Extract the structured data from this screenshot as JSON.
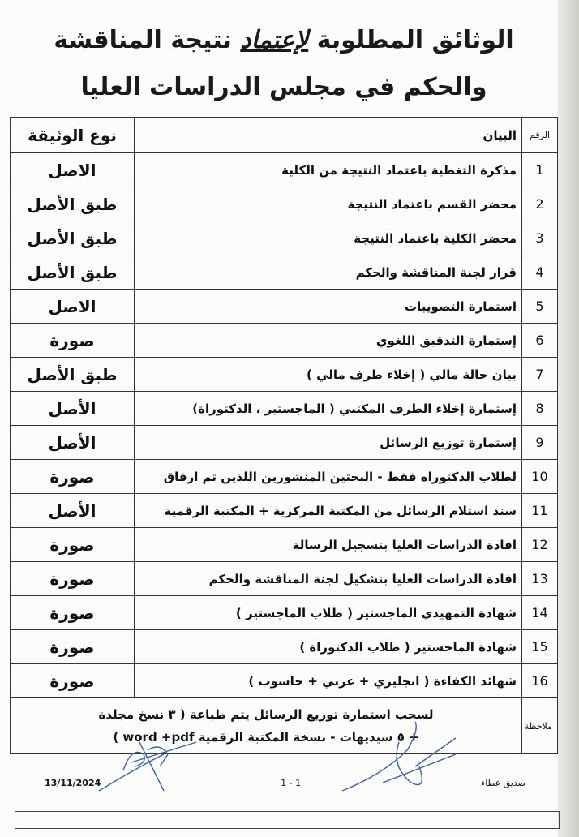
{
  "title": {
    "line1_before": "الوثائق المطلوبة ",
    "line1_underlined": "لإعتماد",
    "line1_after": " نتيجة المناقشة",
    "line2": "والحكم في مجلس الدراسات العليا"
  },
  "table": {
    "headers": {
      "number": "الرقم",
      "statement": "البيان",
      "type": "نوع الوثيقة"
    },
    "rows": [
      {
        "n": "1",
        "statement": "مذكرة التغطية باعتماد النتيجة من الكلية",
        "type": "الاصل"
      },
      {
        "n": "2",
        "statement": "محضر القسم باعتماد النتيجة",
        "type": "طبق الأصل"
      },
      {
        "n": "3",
        "statement": "محضر الكلية باعتماد النتيجة",
        "type": "طبق الأصل"
      },
      {
        "n": "4",
        "statement": "قرار لجنة المناقشة والحكم",
        "type": "طبق الأصل"
      },
      {
        "n": "5",
        "statement": "استمارة التصويبات",
        "type": "الاصل"
      },
      {
        "n": "6",
        "statement": "إستمارة التدقيق اللغوي",
        "type": "صورة"
      },
      {
        "n": "7",
        "statement": "بيان حالة مالي ( إخلاء طرف مالي )",
        "type": "طبق الأصل"
      },
      {
        "n": "8",
        "statement": "إستمارة إخلاء الطرف المكتبي ( الماجستير ، الدكتوراة)",
        "type": "الأصل"
      },
      {
        "n": "9",
        "statement": "إستمارة توزيع الرسائل",
        "type": "الأصل"
      },
      {
        "n": "10",
        "statement": "لطلاب الدكتوراه فقط - البحثين المنشورين اللذين تم ارفاق",
        "type": "صورة"
      },
      {
        "n": "11",
        "statement": "سند استلام الرسائل من المكتبة المركزية + المكتبة الرقمية",
        "type": "الأصل"
      },
      {
        "n": "12",
        "statement": "افادة الدراسات العليا بتسجيل الرسالة",
        "type": "صورة"
      },
      {
        "n": "13",
        "statement": "افادة الدراسات العليا بتشكيل لجنة المناقشة والحكم",
        "type": "صورة"
      },
      {
        "n": "14",
        "statement": "شهادة التمهيدي الماجستير ( طلاب الماجستير )",
        "type": "صورة"
      },
      {
        "n": "15",
        "statement": "شهادة الماجستير ( طلاب الدكتوراة )",
        "type": "صورة"
      },
      {
        "n": "16",
        "statement": "شهائد الكفاءة ( انجليزي + عربي + حاسوب )",
        "type": "صورة"
      }
    ],
    "note_label": "ملاحظة",
    "note_line1": "لسحب استمارة توزيع الرسائل يتم طباعة ( ٣ نسخ مجلدة",
    "note_line2": "+ ٥ سيديهات - نسخة المكتبة الرقمية word +pdf )"
  },
  "footer": {
    "date": "13/11/2024",
    "page": "1 - 1",
    "signer": "صديق عطاء"
  },
  "colors": {
    "ink": "#111111",
    "signature": "#3b5fb0",
    "paper": "#fbfbf9"
  }
}
